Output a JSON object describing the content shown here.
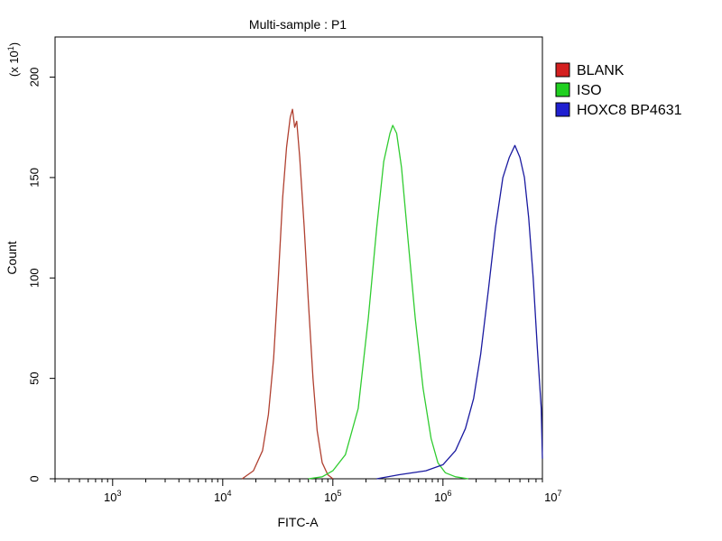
{
  "chart_data": {
    "type": "area",
    "title": "Multi-sample : P1",
    "xlabel": "FITC-A",
    "ylabel": "Count",
    "y_multiplier": {
      "base": "(x 10",
      "exp": "1",
      "close": ")"
    },
    "x_scale": "log",
    "xlim": [
      300,
      8000000
    ],
    "ylim": [
      0,
      220
    ],
    "x_ticks": [
      {
        "value": 1000,
        "base": "10",
        "exp": "3"
      },
      {
        "value": 10000,
        "base": "10",
        "exp": "4"
      },
      {
        "value": 100000,
        "base": "10",
        "exp": "5"
      },
      {
        "value": 1000000,
        "base": "10",
        "exp": "6"
      },
      {
        "value": 10000000,
        "base": "10",
        "exp": "7"
      }
    ],
    "y_ticks": [
      "0",
      "50",
      "100",
      "150",
      "200"
    ],
    "grid": false,
    "legend_position": "right",
    "series": [
      {
        "name": "BLANK",
        "color": "#d42020",
        "stroke": "#b04030",
        "points": [
          [
            15000,
            0
          ],
          [
            19000,
            4
          ],
          [
            23000,
            14
          ],
          [
            26000,
            32
          ],
          [
            29000,
            60
          ],
          [
            32000,
            100
          ],
          [
            35000,
            140
          ],
          [
            38000,
            165
          ],
          [
            41000,
            180
          ],
          [
            43000,
            184
          ],
          [
            45000,
            175
          ],
          [
            47000,
            178
          ],
          [
            50000,
            160
          ],
          [
            55000,
            125
          ],
          [
            60000,
            88
          ],
          [
            66000,
            50
          ],
          [
            72000,
            24
          ],
          [
            80000,
            8
          ],
          [
            90000,
            2
          ],
          [
            100000,
            0
          ]
        ]
      },
      {
        "name": "ISO",
        "color": "#20d020",
        "stroke": "#30cc30",
        "points": [
          [
            60000,
            0
          ],
          [
            80000,
            1
          ],
          [
            100000,
            4
          ],
          [
            130000,
            12
          ],
          [
            170000,
            35
          ],
          [
            210000,
            80
          ],
          [
            250000,
            125
          ],
          [
            290000,
            158
          ],
          [
            330000,
            172
          ],
          [
            350000,
            176
          ],
          [
            380000,
            172
          ],
          [
            420000,
            155
          ],
          [
            480000,
            120
          ],
          [
            560000,
            80
          ],
          [
            660000,
            45
          ],
          [
            780000,
            20
          ],
          [
            900000,
            8
          ],
          [
            1050000,
            3
          ],
          [
            1300000,
            1
          ],
          [
            1700000,
            0
          ]
        ]
      },
      {
        "name": "HOXC8 BP4631",
        "color": "#2020d0",
        "stroke": "#1a1aa0",
        "points": [
          [
            250000,
            0
          ],
          [
            400000,
            2
          ],
          [
            700000,
            4
          ],
          [
            1000000,
            7
          ],
          [
            1300000,
            14
          ],
          [
            1600000,
            25
          ],
          [
            1900000,
            40
          ],
          [
            2200000,
            62
          ],
          [
            2600000,
            95
          ],
          [
            3000000,
            125
          ],
          [
            3500000,
            150
          ],
          [
            4000000,
            160
          ],
          [
            4500000,
            166
          ],
          [
            5000000,
            160
          ],
          [
            5500000,
            150
          ],
          [
            6000000,
            130
          ],
          [
            6600000,
            100
          ],
          [
            7200000,
            65
          ],
          [
            7800000,
            35
          ],
          [
            8000000,
            10
          ]
        ]
      }
    ]
  }
}
